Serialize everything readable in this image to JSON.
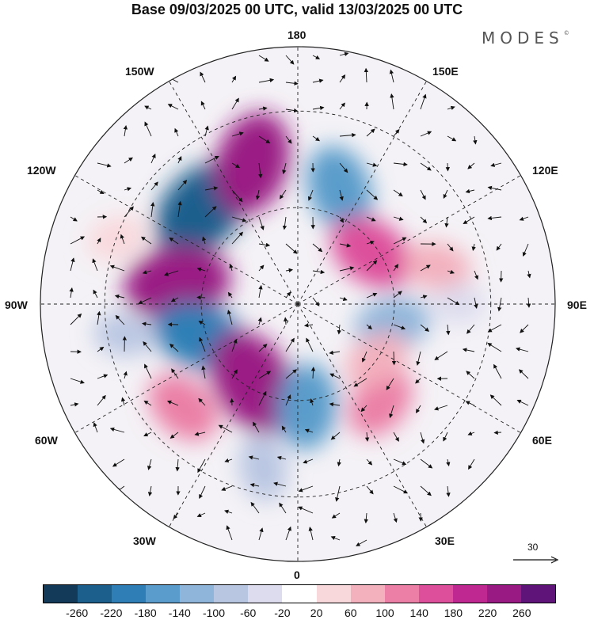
{
  "title": "Base 09/03/2025 00 UTC, valid 13/03/2025 00 UTC",
  "logo": {
    "text": "MODES",
    "mark": "©"
  },
  "longitude_labels": {
    "top": "180",
    "bottom": "0",
    "left": "90W",
    "right": "90E",
    "upper_left_1": "150W",
    "upper_left_2": "120W",
    "lower_left_1": "60W",
    "lower_left_2": "30W",
    "upper_right_1": "150E",
    "upper_right_2": "120E",
    "lower_right_1": "60E",
    "lower_right_2": "30E"
  },
  "reference_vector": {
    "label": "30"
  },
  "colorbar": {
    "colors": [
      "#143a5a",
      "#1c5f8d",
      "#2f7fb6",
      "#5a9ccb",
      "#8fb5da",
      "#b9c6e2",
      "#dcdcee",
      "#ffffff",
      "#f9d8dc",
      "#f3b0bd",
      "#eb7fa6",
      "#dd4f9b",
      "#c02891",
      "#9a1a84",
      "#5e1479"
    ],
    "ticks": [
      "-260",
      "-220",
      "-180",
      "-140",
      "-100",
      "-60",
      "-20",
      "20",
      "60",
      "100",
      "140",
      "180",
      "220",
      "260"
    ]
  },
  "anomaly_cells": [
    {
      "lon": -135,
      "lat": 48,
      "value": -250
    },
    {
      "lon": -162,
      "lat": 44,
      "value": 230
    },
    {
      "lon": 160,
      "lat": 52,
      "value": -170
    },
    {
      "lon": 125,
      "lat": 62,
      "value": 170
    },
    {
      "lon": 105,
      "lat": 45,
      "value": 90
    },
    {
      "lon": -100,
      "lat": 52,
      "value": 240
    },
    {
      "lon": -72,
      "lat": 58,
      "value": -190
    },
    {
      "lon": -30,
      "lat": 62,
      "value": 250
    },
    {
      "lon": -48,
      "lat": 42,
      "value": 130
    },
    {
      "lon": 5,
      "lat": 58,
      "value": -160
    },
    {
      "lon": -12,
      "lat": 38,
      "value": -90
    },
    {
      "lon": 78,
      "lat": 60,
      "value": -120
    },
    {
      "lon": 40,
      "lat": 50,
      "value": 120
    },
    {
      "lon": 55,
      "lat": 60,
      "value": 90
    },
    {
      "lon": -110,
      "lat": 30,
      "value": 60
    },
    {
      "lon": 90,
      "lat": 40,
      "value": -40
    },
    {
      "lon": -80,
      "lat": 35,
      "value": -60
    }
  ]
}
